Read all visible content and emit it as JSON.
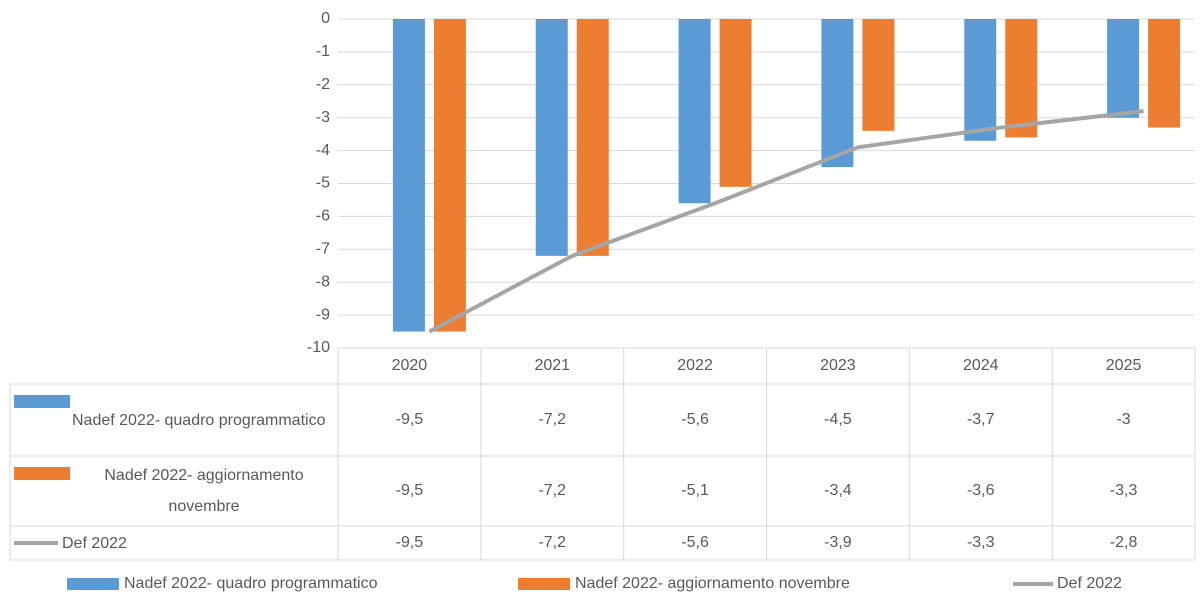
{
  "chart_data": {
    "type": "bar",
    "categories": [
      "2020",
      "2021",
      "2022",
      "2023",
      "2024",
      "2025"
    ],
    "series": [
      {
        "name": "Nadef 2022- quadro programmatico",
        "type": "bar",
        "color": "#5b9bd5",
        "values": [
          -9.5,
          -7.2,
          -5.6,
          -4.5,
          -3.7,
          -3
        ],
        "value_labels": [
          "-9,5",
          "-7,2",
          "-5,6",
          "-4,5",
          "-3,7",
          "-3"
        ]
      },
      {
        "name": "Nadef 2022- aggiornamento novembre",
        "type": "bar",
        "color": "#ed7d31",
        "values": [
          -9.5,
          -7.2,
          -5.1,
          -3.4,
          -3.6,
          -3.3
        ],
        "value_labels": [
          "-9,5",
          "-7,2",
          "-5,1",
          "-3,4",
          "-3,6",
          "-3,3"
        ]
      },
      {
        "name": "Def 2022",
        "type": "line",
        "color": "#a5a5a5",
        "values": [
          -9.5,
          -7.2,
          -5.6,
          -3.9,
          -3.3,
          -2.8
        ],
        "value_labels": [
          "-9,5",
          "-7,2",
          "-5,6",
          "-3,9",
          "-3,3",
          "-2,8"
        ]
      }
    ],
    "ylim": [
      -10,
      0
    ],
    "yticks": [
      0,
      -1,
      -2,
      -3,
      -4,
      -5,
      -6,
      -7,
      -8,
      -9,
      -10
    ],
    "grid": true,
    "legend": "bottom"
  }
}
